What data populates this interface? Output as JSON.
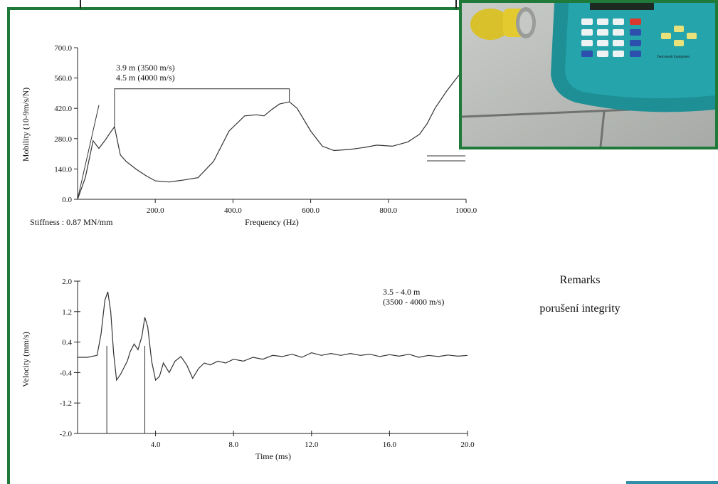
{
  "chart_data": [
    {
      "type": "line",
      "ylabel": "Mobility (10-9m/s/N)",
      "xlabel": "Frequency  (Hz)",
      "xlim": [
        0,
        1000
      ],
      "ylim": [
        0,
        700
      ],
      "y_ticks": [
        "0.0",
        "140.0",
        "280.0",
        "420.0",
        "560.0",
        "700.0"
      ],
      "x_ticks": [
        "200.0",
        "400.0",
        "600.0",
        "800.0",
        "1000.0"
      ],
      "annotations": [
        "3.9 m (3500 m/s)",
        "4.5 m (4000 m/s)"
      ],
      "stiffness_note": "Stiffness : 0.87 MN/mm",
      "series": [
        {
          "x": [
            0,
            20,
            40,
            55,
            70,
            85,
            95,
            110,
            125,
            150,
            175,
            200,
            235,
            270,
            310,
            350,
            390,
            430,
            460,
            480,
            500,
            520,
            545,
            565,
            600,
            630,
            660,
            700,
            740,
            770,
            810,
            850,
            880,
            900,
            920,
            950,
            980,
            1000
          ],
          "y": [
            0,
            100,
            270,
            235,
            270,
            310,
            335,
            205,
            175,
            140,
            110,
            85,
            80,
            88,
            100,
            175,
            315,
            385,
            390,
            385,
            415,
            440,
            450,
            420,
            315,
            245,
            225,
            230,
            240,
            250,
            245,
            265,
            300,
            350,
            420,
            500,
            570,
            610
          ]
        }
      ],
      "stiffness_line": {
        "x": [
          0,
          55
        ],
        "y": [
          0,
          435
        ]
      },
      "bracket": {
        "x": [
          95,
          545
        ],
        "y": 510
      }
    },
    {
      "type": "line",
      "ylabel": "Velocity (mm/s)",
      "xlabel": "Time (ms)",
      "xlim": [
        0,
        20
      ],
      "ylim": [
        -2.0,
        2.0
      ],
      "y_ticks": [
        "2.0",
        "1.2",
        "0.4",
        "-0.4",
        "-1.2",
        "-2.0"
      ],
      "x_ticks": [
        "4.0",
        "8.0",
        "12.0",
        "16.0",
        "20.0"
      ],
      "annotations": [
        "3.5 - 4.0 m",
        "(3500 - 4000 m/s)"
      ],
      "series": [
        {
          "x": [
            0,
            0.5,
            1.0,
            1.2,
            1.4,
            1.55,
            1.7,
            1.85,
            2.0,
            2.2,
            2.4,
            2.55,
            2.7,
            2.9,
            3.1,
            3.3,
            3.45,
            3.6,
            3.8,
            4.0,
            4.2,
            4.4,
            4.7,
            5.0,
            5.3,
            5.6,
            5.9,
            6.2,
            6.5,
            6.8,
            7.2,
            7.6,
            8.0,
            8.5,
            9.0,
            9.5,
            10.0,
            10.5,
            11.0,
            11.5,
            12.0,
            12.5,
            13.0,
            13.5,
            14.0,
            14.5,
            15.0,
            15.5,
            16.0,
            16.5,
            17.0,
            17.5,
            18.0,
            18.5,
            19.0,
            19.5,
            20.0
          ],
          "y": [
            0.0,
            0.0,
            0.05,
            0.6,
            1.5,
            1.72,
            1.2,
            0.1,
            -0.6,
            -0.45,
            -0.25,
            -0.1,
            0.15,
            0.35,
            0.2,
            0.55,
            1.05,
            0.8,
            -0.1,
            -0.6,
            -0.5,
            -0.15,
            -0.4,
            -0.1,
            0.02,
            -0.2,
            -0.55,
            -0.3,
            -0.15,
            -0.2,
            -0.1,
            -0.15,
            -0.05,
            -0.1,
            0.0,
            -0.05,
            0.05,
            0.02,
            0.08,
            0.0,
            0.12,
            0.05,
            0.1,
            0.05,
            0.1,
            0.05,
            0.08,
            0.02,
            0.07,
            0.03,
            0.08,
            0.0,
            0.05,
            0.02,
            0.06,
            0.03,
            0.05
          ]
        }
      ],
      "markers": [
        1.5,
        3.45
      ]
    }
  ],
  "remarks": {
    "title": "Remarks",
    "text": "porušení integrity"
  },
  "photo": {
    "description_icons": [
      "impact-hammer-icon",
      "tester-device-icon"
    ],
    "device_label": "Testconsult Equipment",
    "colors": {
      "frame": "#1f7a3a",
      "device": "#1d8f95",
      "hammer": "#e0c320"
    }
  }
}
